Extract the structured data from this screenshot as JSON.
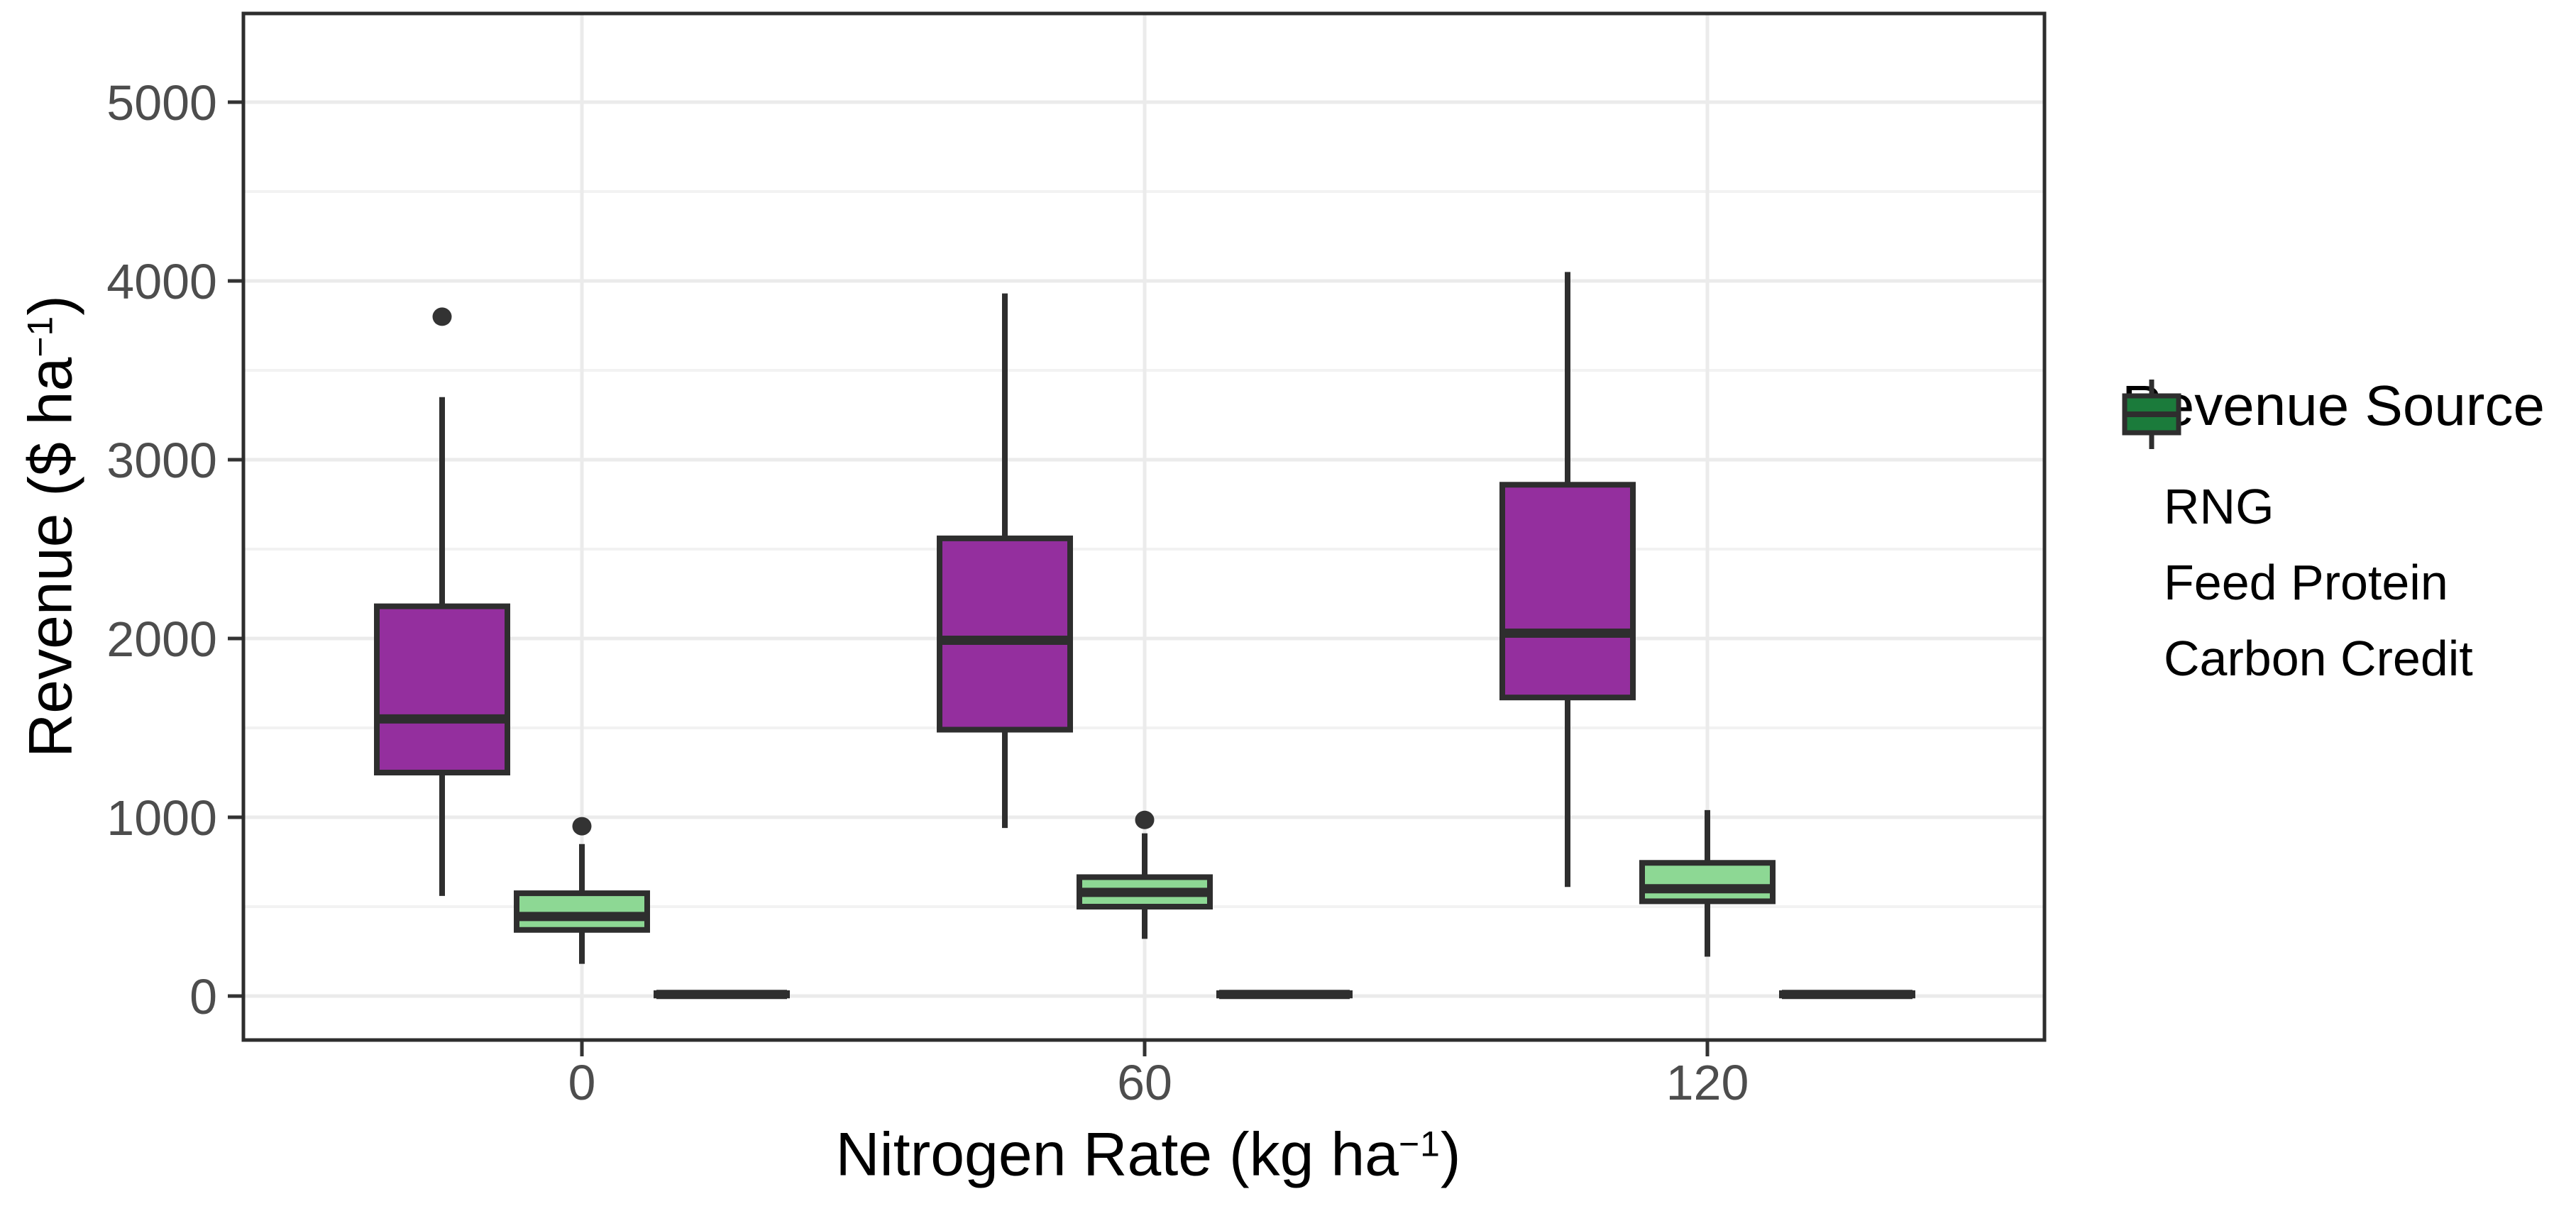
{
  "chart_data": {
    "type": "boxplot",
    "title": "",
    "x_axis": {
      "title_prefix": "Nitrogen Rate (kg ha",
      "title_sup": "−1",
      "title_suffix": ")",
      "categories": [
        "0",
        "60",
        "120"
      ]
    },
    "y_axis": {
      "title_prefix": "Revenue ($ ha",
      "title_sup": "−1",
      "title_suffix": ")",
      "ticks": [
        0,
        1000,
        2000,
        3000,
        4000,
        5000
      ],
      "minor_ticks": [
        500,
        1500,
        2500,
        3500,
        4500
      ],
      "range_at_panel_edges": [
        -260,
        5470
      ]
    },
    "legend": {
      "title": "Revenue Source",
      "position": "right",
      "items": [
        {
          "label": "RNG",
          "color": "#942F9E"
        },
        {
          "label": "Feed Protein",
          "color": "#8DD894"
        },
        {
          "label": "Carbon Credit",
          "color": "#1B7B3B"
        }
      ]
    },
    "series": [
      {
        "name": "RNG",
        "fill": "#942F9E",
        "boxes": [
          {
            "category": "0",
            "low": 560,
            "q1": 1250,
            "median": 1550,
            "q3": 2180,
            "high": 3350,
            "outliers": [
              3800
            ]
          },
          {
            "category": "60",
            "low": 940,
            "q1": 1490,
            "median": 1990,
            "q3": 2560,
            "high": 3930,
            "outliers": []
          },
          {
            "category": "120",
            "low": 610,
            "q1": 1670,
            "median": 2030,
            "q3": 2860,
            "high": 4050,
            "outliers": []
          }
        ]
      },
      {
        "name": "Feed Protein",
        "fill": "#8DD894",
        "boxes": [
          {
            "category": "0",
            "low": 180,
            "q1": 370,
            "median": 445,
            "q3": 575,
            "high": 850,
            "outliers": [
              950
            ]
          },
          {
            "category": "60",
            "low": 320,
            "q1": 500,
            "median": 580,
            "q3": 665,
            "high": 910,
            "outliers": [
              985
            ]
          },
          {
            "category": "120",
            "low": 220,
            "q1": 530,
            "median": 600,
            "q3": 745,
            "high": 1040,
            "outliers": []
          }
        ]
      },
      {
        "name": "Carbon Credit",
        "fill": "#1B7B3B",
        "boxes": [
          {
            "category": "0",
            "low": 0,
            "q1": 3,
            "median": 9,
            "q3": 16,
            "high": 20,
            "outliers": []
          },
          {
            "category": "60",
            "low": 0,
            "q1": 3,
            "median": 9,
            "q3": 16,
            "high": 20,
            "outliers": []
          },
          {
            "category": "120",
            "low": 0,
            "q1": 3,
            "median": 9,
            "q3": 16,
            "high": 20,
            "outliers": []
          }
        ]
      }
    ],
    "style": {
      "stroke": "#2E2E2E",
      "grid_major": "#EBEBEB",
      "grid_minor": "#F2F2F2",
      "tick_color": "#333333",
      "tick_label_color": "#4D4D4D",
      "panel_border": "#2D2D2D",
      "outlier_color": "#333333",
      "panel_background": "#FFFFFF"
    }
  }
}
